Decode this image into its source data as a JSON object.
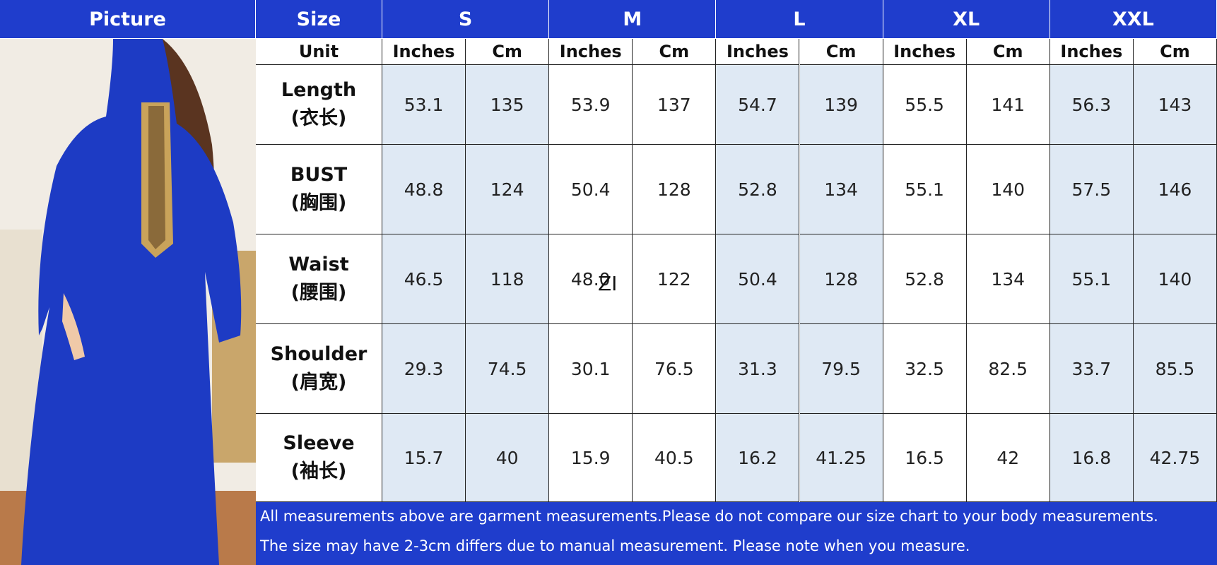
{
  "header": {
    "picture": "Picture",
    "size": "Size",
    "unit": "Unit",
    "sizes": [
      "S",
      "M",
      "L",
      "XL",
      "XXL"
    ],
    "units": [
      "Inches",
      "Cm",
      "Inches",
      "Cm",
      "Inches",
      "Cm",
      "Inches",
      "Cm",
      "Inches",
      "Cm"
    ]
  },
  "table": {
    "rows": [
      {
        "label": "Length",
        "label_cn": "(衣长)",
        "values": [
          "53.1",
          "135",
          "53.9",
          "137",
          "54.7",
          "139",
          "55.5",
          "141",
          "56.3",
          "143"
        ]
      },
      {
        "label": "BUST",
        "label_cn": "(胸围)",
        "values": [
          "48.8",
          "124",
          "50.4",
          "128",
          "52.8",
          "134",
          "55.1",
          "140",
          "57.5",
          "146"
        ]
      },
      {
        "label": "Waist",
        "label_cn": "(腰围)",
        "values": [
          "46.5",
          "118",
          "48.0",
          "122",
          "50.4",
          "128",
          "52.8",
          "134",
          "55.1",
          "140"
        ]
      },
      {
        "label": "Shoulder",
        "label_cn": "(肩宽)",
        "values": [
          "29.3",
          "74.5",
          "30.1",
          "76.5",
          "31.3",
          "79.5",
          "32.5",
          "82.5",
          "33.7",
          "85.5"
        ]
      },
      {
        "label": "Sleeve",
        "label_cn": "(袖长)",
        "values": [
          "15.7",
          "40",
          "15.9",
          "40.5",
          "16.2",
          "41.25",
          "16.5",
          "42",
          "16.8",
          "42.75"
        ]
      }
    ]
  },
  "footer": [
    "All measurements above are garment measurements.Please do not compare our size chart to your body measurements.",
    "The size may have 2-3cm differs due to manual measurement. Please note when you measure."
  ],
  "watermark": "ZI"
}
